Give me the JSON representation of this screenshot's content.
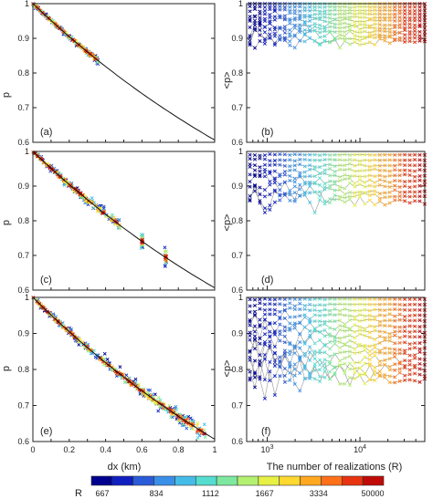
{
  "figure": {
    "panels": [
      "(a)",
      "(b)",
      "(c)",
      "(d)",
      "(e)",
      "(f)"
    ],
    "left_ylabel": "p",
    "right_ylabel": "<p>",
    "left_xlabel": "dx (km)",
    "right_xlabel": "The number of realizations (R)"
  },
  "colorbar": {
    "label": "R",
    "ticks": [
      "667",
      "834",
      "1112",
      "1667",
      "3334",
      "50000"
    ],
    "colors": [
      "#00008f",
      "#1020c0",
      "#2a5bd8",
      "#3a8fe8",
      "#45bce8",
      "#55ddd0",
      "#7ee8a0",
      "#b4f070",
      "#e6f045",
      "#ffd830",
      "#ffa820",
      "#ff7018",
      "#e83410",
      "#c00a08"
    ]
  },
  "chart_data": [
    {
      "type": "scatter",
      "panel": "(a)",
      "xlabel": "",
      "ylabel": "p",
      "xlim": [
        0,
        1
      ],
      "ylim": [
        0.6,
        1.0
      ],
      "x_ticks": [],
      "y_ticks": [
        "0.6",
        "0.7",
        "0.8",
        "0.9",
        "1"
      ],
      "curve": {
        "description": "p = exp(-0.5 dx)",
        "x": [
          0,
          0.1,
          0.2,
          0.3,
          0.4,
          0.5,
          0.6,
          0.7,
          0.8,
          0.9,
          1.0
        ],
        "y": [
          1.0,
          0.951,
          0.905,
          0.861,
          0.819,
          0.779,
          0.741,
          0.705,
          0.67,
          0.638,
          0.607
        ]
      },
      "scatter_x_range": [
        0,
        0.36
      ],
      "max_spread": 0.012
    },
    {
      "type": "line",
      "panel": "(b)",
      "xlabel": "",
      "ylabel": "<p>",
      "xlim": [
        600,
        50000
      ],
      "x_scale": "log",
      "ylim": [
        0.6,
        1.0
      ],
      "x_ticks": [],
      "y_ticks": [
        "0.6",
        "0.7",
        "0.8",
        "0.9",
        "1"
      ],
      "series_p_values": [
        1.0,
        0.99,
        0.98,
        0.97,
        0.96,
        0.95,
        0.94,
        0.93,
        0.92,
        0.91,
        0.9,
        0.89
      ]
    },
    {
      "type": "scatter",
      "panel": "(c)",
      "xlabel": "",
      "ylabel": "p",
      "xlim": [
        0,
        1
      ],
      "ylim": [
        0.6,
        1.0
      ],
      "x_ticks": [],
      "y_ticks": [
        "0.6",
        "0.7",
        "0.8",
        "0.9",
        "1"
      ],
      "curve": {
        "description": "p = exp(-0.5 dx)",
        "x": [
          0,
          0.1,
          0.2,
          0.3,
          0.4,
          0.5,
          0.6,
          0.7,
          0.8,
          0.9,
          1.0
        ],
        "y": [
          1.0,
          0.951,
          0.905,
          0.861,
          0.819,
          0.779,
          0.741,
          0.705,
          0.67,
          0.638,
          0.607
        ]
      },
      "scatter_x_range": [
        0,
        0.48
      ],
      "clusters_x": [
        0.6,
        0.73
      ],
      "max_spread": 0.025
    },
    {
      "type": "line",
      "panel": "(d)",
      "xlabel": "",
      "ylabel": "<p>",
      "xlim": [
        600,
        50000
      ],
      "x_scale": "log",
      "ylim": [
        0.6,
        1.0
      ],
      "x_ticks": [],
      "y_ticks": [
        "0.6",
        "0.7",
        "0.8",
        "0.9",
        "1"
      ],
      "series_p_values": [
        0.99,
        0.975,
        0.96,
        0.945,
        0.93,
        0.915,
        0.9,
        0.885,
        0.87,
        0.855
      ]
    },
    {
      "type": "scatter",
      "panel": "(e)",
      "xlabel": "dx (km)",
      "ylabel": "p",
      "xlim": [
        0,
        1
      ],
      "ylim": [
        0.6,
        1.0
      ],
      "x_ticks": [
        "0",
        "0.2",
        "0.4",
        "0.6",
        "0.8",
        "1"
      ],
      "y_ticks": [
        "0.6",
        "0.7",
        "0.8",
        "0.9",
        "1"
      ],
      "curve": {
        "description": "p = exp(-0.5 dx)",
        "x": [
          0,
          0.1,
          0.2,
          0.3,
          0.4,
          0.5,
          0.6,
          0.7,
          0.8,
          0.9,
          1.0
        ],
        "y": [
          1.0,
          0.951,
          0.905,
          0.861,
          0.819,
          0.779,
          0.741,
          0.705,
          0.67,
          0.638,
          0.607
        ]
      },
      "scatter_x_range": [
        0,
        0.95
      ],
      "max_spread": 0.018
    },
    {
      "type": "line",
      "panel": "(f)",
      "xlabel": "The number of realizations (R)",
      "ylabel": "<p>",
      "xlim": [
        600,
        50000
      ],
      "x_scale": "log",
      "ylim": [
        0.6,
        1.0
      ],
      "x_ticks": [
        "10^3",
        "10^4"
      ],
      "y_ticks": [
        "0.6",
        "0.7",
        "0.8",
        "0.9",
        "1"
      ],
      "series_p_values": [
        0.995,
        0.98,
        0.965,
        0.95,
        0.935,
        0.92,
        0.905,
        0.89,
        0.875,
        0.86,
        0.845,
        0.83,
        0.815,
        0.8,
        0.785,
        0.77
      ]
    }
  ]
}
